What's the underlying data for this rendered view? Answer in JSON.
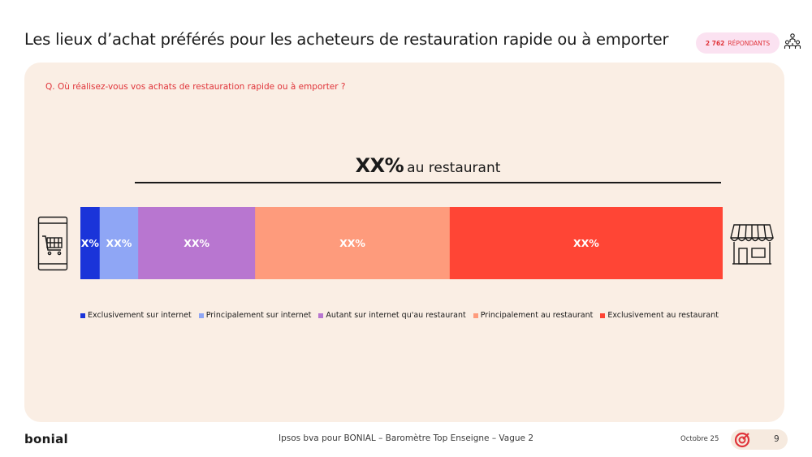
{
  "header": {
    "title": "Les lieux d’achat préférés pour les acheteurs de restauration rapide ou à emporter",
    "respondents_count": "2 762",
    "respondents_label": "RÉPONDANTS"
  },
  "question": "Q. Où réalisez-vous vos achats de restauration rapide ou à emporter ?",
  "headline": {
    "value": "XX%",
    "text": "au restaurant"
  },
  "chart_data": {
    "type": "bar",
    "orientation": "horizontal-stacked-100",
    "categories": [
      "Exclusivement sur internet",
      "Principalement sur internet",
      "Autant sur internet qu'au restaurant",
      "Principalement au restaurant",
      "Exclusivement au restaurant"
    ],
    "values": [
      3,
      6,
      18.2,
      30.3,
      42.5
    ],
    "labels": [
      "X%",
      "XX%",
      "XX%",
      "XX%",
      "XX%"
    ],
    "colors": [
      "#1a34d9",
      "#8fa6f5",
      "#b876d0",
      "#fe9b7c",
      "#ff4535"
    ],
    "legend_position": "bottom"
  },
  "icons": {
    "left": "phone-cart-icon",
    "right": "store-icon",
    "badge": "people-icon",
    "footer": "target-icon"
  },
  "footer": {
    "logo": "bonial",
    "source": "Ipsos bva pour BONIAL – Baromètre Top Enseigne – Vague 2",
    "date": "Octobre 25",
    "page": "9"
  }
}
